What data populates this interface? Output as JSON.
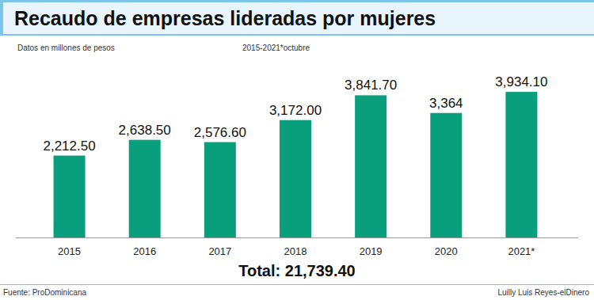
{
  "chart_data": {
    "type": "bar",
    "title": "Recaudo de empresas lideradas por mujeres",
    "subtitle": "Datos en millones de pesos",
    "period": "2015-2021*octubre",
    "categories": [
      "2015",
      "2016",
      "2017",
      "2018",
      "2019",
      "2020",
      "2021*"
    ],
    "values": [
      2212.5,
      2638.5,
      2576.6,
      3172.0,
      3841.7,
      3364,
      3934.1
    ],
    "value_labels": [
      "2,212.50",
      "2,638.50",
      "2,576.60",
      "3,172.00",
      "3,841.70",
      "3,364",
      "3,934.10"
    ],
    "color": "#0a9f7c",
    "ylim": [
      0,
      4000
    ],
    "data_labels": true,
    "tick_labels": "x",
    "grid": false,
    "annotations": [
      "Total: 21,739.40"
    ],
    "source": "Fuente: ProDominicana",
    "credit": "Luilly Luis Reyes-elDinero"
  }
}
